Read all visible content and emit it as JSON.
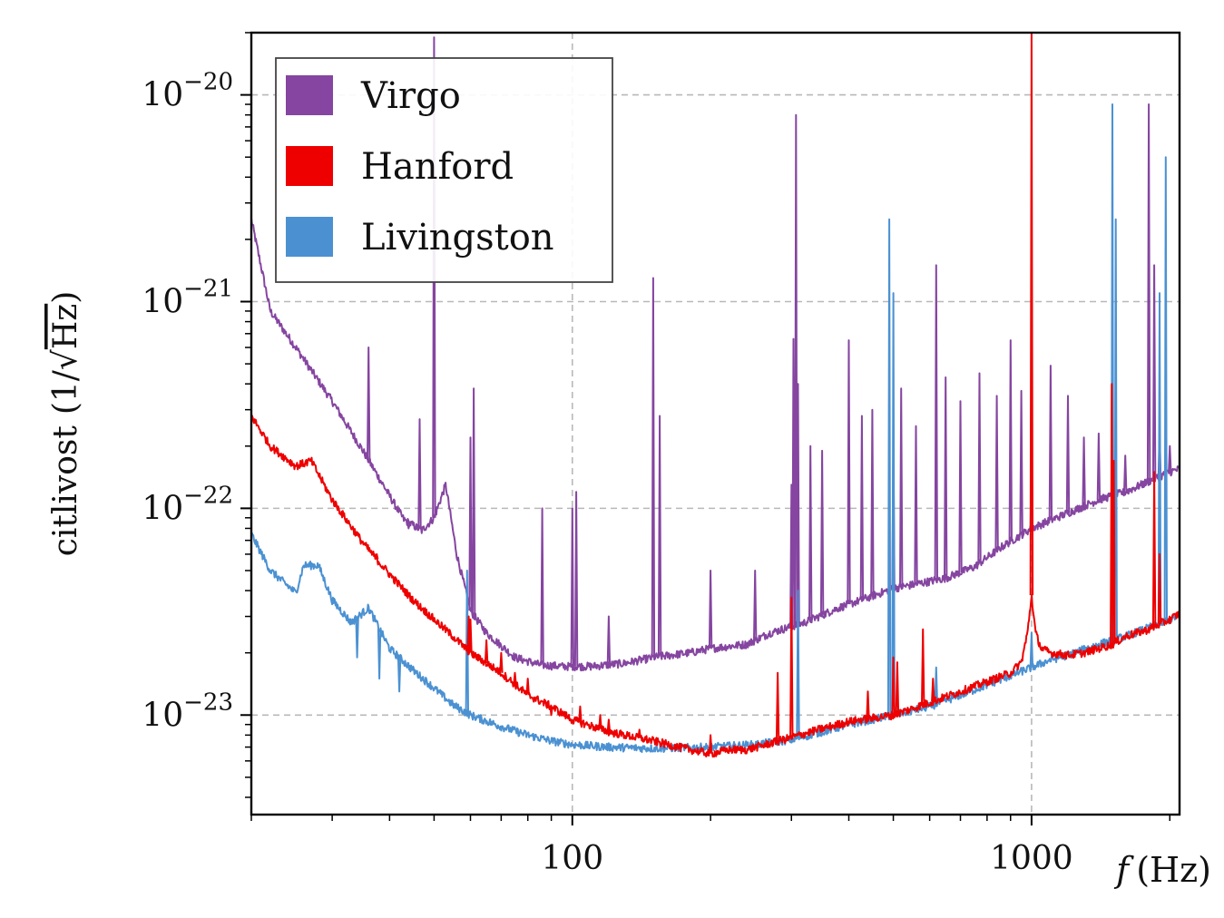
{
  "chart_data": {
    "type": "line",
    "title": "",
    "xlabel": "f (Hz)",
    "xlabel_parts": {
      "var": "f",
      "unit": "(Hz)"
    },
    "ylabel": "citlivost (1/√Hz)",
    "ylabel_parts": {
      "word": "citlivost",
      "open": "(1/",
      "root": "√",
      "rooted": "Hz",
      "close": ")"
    },
    "xscale": "log",
    "yscale": "log",
    "xlim": [
      20,
      2100
    ],
    "ylim": [
      3.3e-24,
      2e-20
    ],
    "grid": true,
    "legend": "top-left",
    "x_ticks": [
      {
        "value": 100,
        "label": "100"
      },
      {
        "value": 1000,
        "label": "1000"
      }
    ],
    "y_ticks": [
      {
        "value": 1e-20,
        "base": "10",
        "exp": "−20"
      },
      {
        "value": 1e-21,
        "base": "10",
        "exp": "−21"
      },
      {
        "value": 1e-22,
        "base": "10",
        "exp": "−22"
      },
      {
        "value": 1e-23,
        "base": "10",
        "exp": "−23"
      }
    ],
    "series": [
      {
        "name": "Virgo",
        "color": "#8545a0",
        "baseline": [
          [
            20,
            2.5e-21
          ],
          [
            22,
            9e-22
          ],
          [
            25,
            6e-22
          ],
          [
            30,
            3.3e-22
          ],
          [
            35,
            1.9e-22
          ],
          [
            40,
            1.15e-22
          ],
          [
            43,
            8.8e-23
          ],
          [
            47,
            7.8e-23
          ],
          [
            50,
            9e-23
          ],
          [
            53,
            1.3e-22
          ],
          [
            56,
            6e-23
          ],
          [
            60,
            3.2e-23
          ],
          [
            65,
            2.5e-23
          ],
          [
            75,
            1.9e-23
          ],
          [
            85,
            1.75e-23
          ],
          [
            95,
            1.72e-23
          ],
          [
            110,
            1.72e-23
          ],
          [
            130,
            1.78e-23
          ],
          [
            150,
            1.9e-23
          ],
          [
            180,
            2e-23
          ],
          [
            200,
            2.1e-23
          ],
          [
            240,
            2.2e-23
          ],
          [
            270,
            2.5e-23
          ],
          [
            320,
            2.8e-23
          ],
          [
            380,
            3.3e-23
          ],
          [
            440,
            3.7e-23
          ],
          [
            500,
            4.1e-23
          ],
          [
            560,
            4.3e-23
          ],
          [
            650,
            4.6e-23
          ],
          [
            750,
            5.2e-23
          ],
          [
            860,
            6.5e-23
          ],
          [
            1000,
            8e-23
          ],
          [
            1200,
            9.5e-23
          ],
          [
            1400,
            1.1e-22
          ],
          [
            1600,
            1.2e-22
          ],
          [
            1800,
            1.35e-22
          ],
          [
            2000,
            1.5e-22
          ],
          [
            2100,
            1.55e-22
          ]
        ],
        "peaks": [
          [
            36,
            6e-22
          ],
          [
            44,
            8e-23
          ],
          [
            46.5,
            2.7e-22
          ],
          [
            50,
            1.9e-20
          ],
          [
            60,
            2.2e-22
          ],
          [
            61,
            3.8e-22
          ],
          [
            86,
            1e-22
          ],
          [
            100,
            1e-22
          ],
          [
            102,
            1.2e-22
          ],
          [
            120,
            3e-23
          ],
          [
            150,
            1.3e-21
          ],
          [
            155,
            2.8e-22
          ],
          [
            200,
            5e-23
          ],
          [
            250,
            5e-23
          ],
          [
            300,
            1.3e-22
          ],
          [
            303,
            6.6e-22
          ],
          [
            307,
            8e-21
          ],
          [
            310,
            4e-22
          ],
          [
            330,
            2e-22
          ],
          [
            350,
            1.9e-22
          ],
          [
            400,
            6.5e-22
          ],
          [
            427,
            2.8e-22
          ],
          [
            450,
            3e-22
          ],
          [
            500,
            2e-22
          ],
          [
            520,
            3.8e-22
          ],
          [
            560,
            2.5e-22
          ],
          [
            620,
            1.5e-21
          ],
          [
            650,
            4.3e-22
          ],
          [
            700,
            3.3e-22
          ],
          [
            770,
            4.5e-22
          ],
          [
            840,
            3.5e-22
          ],
          [
            900,
            6.5e-22
          ],
          [
            950,
            3.7e-22
          ],
          [
            1000,
            2.3e-22
          ],
          [
            1100,
            4.9e-22
          ],
          [
            1200,
            3.5e-22
          ],
          [
            1300,
            2.2e-22
          ],
          [
            1400,
            2.3e-22
          ],
          [
            1600,
            1.8e-22
          ],
          [
            1800,
            9e-21
          ],
          [
            1850,
            1.5e-21
          ],
          [
            1900,
            2.3e-22
          ],
          [
            2000,
            2e-22
          ]
        ]
      },
      {
        "name": "Hanford",
        "color": "#ee0000",
        "baseline": [
          [
            20,
            2.8e-22
          ],
          [
            22,
            2e-22
          ],
          [
            25,
            1.6e-22
          ],
          [
            27,
            1.7e-22
          ],
          [
            30,
            1.1e-22
          ],
          [
            35,
            6.8e-23
          ],
          [
            40,
            4.8e-23
          ],
          [
            45,
            3.6e-23
          ],
          [
            50,
            2.9e-23
          ],
          [
            55,
            2.4e-23
          ],
          [
            60,
            2e-23
          ],
          [
            70,
            1.6e-23
          ],
          [
            80,
            1.25e-23
          ],
          [
            90,
            1.1e-23
          ],
          [
            100,
            9.5e-24
          ],
          [
            120,
            8.3e-24
          ],
          [
            150,
            7.5e-24
          ],
          [
            170,
            7e-24
          ],
          [
            200,
            6.5e-24
          ],
          [
            220,
            6.8e-24
          ],
          [
            240,
            6.8e-24
          ],
          [
            270,
            7.3e-24
          ],
          [
            300,
            7.8e-24
          ],
          [
            350,
            8.6e-24
          ],
          [
            400,
            9.3e-24
          ],
          [
            500,
            1e-23
          ],
          [
            600,
            1.15e-23
          ],
          [
            700,
            1.3e-23
          ],
          [
            800,
            1.45e-23
          ],
          [
            900,
            1.6e-23
          ],
          [
            950,
            1.8e-23
          ],
          [
            980,
            2.5e-23
          ],
          [
            1000,
            3.8e-23
          ],
          [
            1020,
            2.5e-23
          ],
          [
            1050,
            2.1e-23
          ],
          [
            1100,
            2e-23
          ],
          [
            1200,
            1.95e-23
          ],
          [
            1300,
            2e-23
          ],
          [
            1400,
            2.1e-23
          ],
          [
            1500,
            2.2e-23
          ],
          [
            1600,
            2.4e-23
          ],
          [
            1800,
            2.6e-23
          ],
          [
            2000,
            2.9e-23
          ],
          [
            2100,
            3.1e-23
          ]
        ],
        "peaks": [
          [
            37.5,
            6e-23
          ],
          [
            46,
            3.5e-23
          ],
          [
            59.5,
            3e-23
          ],
          [
            60,
            2.9e-23
          ],
          [
            65,
            2.3e-23
          ],
          [
            70,
            2e-23
          ],
          [
            75,
            1.6e-23
          ],
          [
            80,
            1.5e-23
          ],
          [
            90,
            1e-23
          ],
          [
            104,
            1.1e-23
          ],
          [
            115,
            1e-23
          ],
          [
            120,
            9.5e-24
          ],
          [
            140,
            8.5e-24
          ],
          [
            200,
            8e-24
          ],
          [
            280,
            1.6e-23
          ],
          [
            300,
            3.7e-23
          ],
          [
            440,
            1.3e-23
          ],
          [
            500,
            1.9e-23
          ],
          [
            510,
            1.8e-23
          ],
          [
            580,
            2.6e-23
          ],
          [
            610,
            1.5e-23
          ],
          [
            1000,
            2e-20
          ],
          [
            1495,
            4e-22
          ],
          [
            1510,
            1.7e-22
          ],
          [
            1850,
            1.5e-22
          ],
          [
            1900,
            6e-23
          ]
        ]
      },
      {
        "name": "Livingston",
        "color": "#4b91d2",
        "baseline": [
          [
            20,
            7.5e-23
          ],
          [
            22,
            5e-23
          ],
          [
            25,
            3.9e-23
          ],
          [
            26,
            5.3e-23
          ],
          [
            28,
            5.3e-23
          ],
          [
            30,
            3.6e-23
          ],
          [
            33,
            2.8e-23
          ],
          [
            36,
            3.3e-23
          ],
          [
            40,
            2.1e-23
          ],
          [
            45,
            1.65e-23
          ],
          [
            50,
            1.35e-23
          ],
          [
            55,
            1.12e-23
          ],
          [
            60,
            1e-23
          ],
          [
            70,
            8.8e-24
          ],
          [
            80,
            8e-24
          ],
          [
            90,
            7.5e-24
          ],
          [
            100,
            7.2e-24
          ],
          [
            120,
            7e-24
          ],
          [
            150,
            6.9e-24
          ],
          [
            200,
            7e-24
          ],
          [
            250,
            7.2e-24
          ],
          [
            300,
            7.6e-24
          ],
          [
            350,
            8.3e-24
          ],
          [
            400,
            9e-24
          ],
          [
            500,
            1e-23
          ],
          [
            600,
            1.1e-23
          ],
          [
            700,
            1.25e-23
          ],
          [
            800,
            1.4e-23
          ],
          [
            900,
            1.55e-23
          ],
          [
            1000,
            1.7e-23
          ],
          [
            1100,
            1.85e-23
          ],
          [
            1200,
            1.95e-23
          ],
          [
            1400,
            2.2e-23
          ],
          [
            1600,
            2.4e-23
          ],
          [
            1800,
            2.65e-23
          ],
          [
            2000,
            2.9e-23
          ],
          [
            2100,
            3.05e-23
          ]
        ],
        "peaks": [
          [
            34,
            1.9e-23
          ],
          [
            38,
            1.5e-23
          ],
          [
            42,
            1.3e-23
          ],
          [
            59,
            5e-23
          ],
          [
            310,
            4e-23
          ],
          [
            490,
            2.5e-21
          ],
          [
            500,
            1.1e-21
          ],
          [
            620,
            1.7e-23
          ],
          [
            1000,
            2.5e-23
          ],
          [
            1500,
            9e-21
          ],
          [
            1525,
            2.5e-21
          ],
          [
            1900,
            1.1e-21
          ],
          [
            1960,
            5e-21
          ]
        ]
      }
    ]
  }
}
